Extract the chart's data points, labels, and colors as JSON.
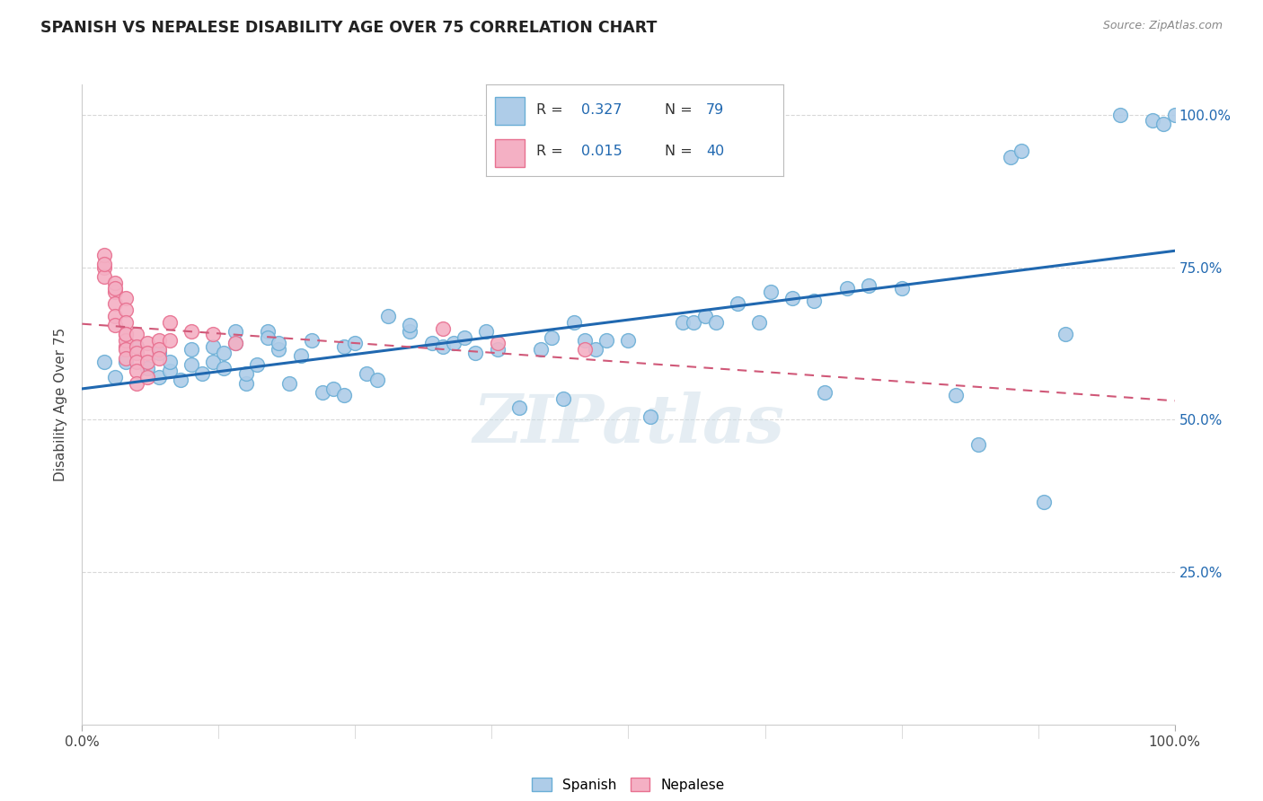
{
  "title": "SPANISH VS NEPALESE DISABILITY AGE OVER 75 CORRELATION CHART",
  "source": "Source: ZipAtlas.com",
  "ylabel": "Disability Age Over 75",
  "xlim": [
    0.0,
    1.0
  ],
  "ylim": [
    0.0,
    1.05
  ],
  "xtick_positions": [
    0.0,
    1.0
  ],
  "xtick_labels": [
    "0.0%",
    "100.0%"
  ],
  "ytick_positions": [
    0.25,
    0.5,
    0.75,
    1.0
  ],
  "ytick_labels_right": [
    "25.0%",
    "50.0%",
    "75.0%",
    "100.0%"
  ],
  "watermark": "ZIPatlas",
  "legend_r1": "0.327",
  "legend_n1": "79",
  "legend_r2": "0.015",
  "legend_n2": "40",
  "spanish_color": "#aecce8",
  "spanish_edge": "#6aaed6",
  "nepalese_color": "#f4b0c4",
  "nepalese_edge": "#e87090",
  "trend_spanish_color": "#2068b0",
  "trend_nepalese_color": "#d05878",
  "grid_color": "#d8d8d8",
  "background_color": "#ffffff",
  "title_color": "#222222",
  "axis_label_color": "#444444",
  "right_tick_color": "#2068b0",
  "spanish_points": [
    [
      0.02,
      0.595
    ],
    [
      0.03,
      0.57
    ],
    [
      0.04,
      0.595
    ],
    [
      0.05,
      0.62
    ],
    [
      0.06,
      0.585
    ],
    [
      0.07,
      0.61
    ],
    [
      0.07,
      0.57
    ],
    [
      0.08,
      0.58
    ],
    [
      0.08,
      0.595
    ],
    [
      0.09,
      0.565
    ],
    [
      0.1,
      0.59
    ],
    [
      0.1,
      0.615
    ],
    [
      0.11,
      0.575
    ],
    [
      0.12,
      0.62
    ],
    [
      0.12,
      0.595
    ],
    [
      0.13,
      0.585
    ],
    [
      0.13,
      0.61
    ],
    [
      0.14,
      0.625
    ],
    [
      0.14,
      0.645
    ],
    [
      0.15,
      0.56
    ],
    [
      0.15,
      0.575
    ],
    [
      0.16,
      0.59
    ],
    [
      0.17,
      0.645
    ],
    [
      0.17,
      0.635
    ],
    [
      0.18,
      0.615
    ],
    [
      0.18,
      0.625
    ],
    [
      0.19,
      0.56
    ],
    [
      0.2,
      0.605
    ],
    [
      0.21,
      0.63
    ],
    [
      0.22,
      0.545
    ],
    [
      0.23,
      0.55
    ],
    [
      0.24,
      0.62
    ],
    [
      0.24,
      0.54
    ],
    [
      0.25,
      0.625
    ],
    [
      0.26,
      0.575
    ],
    [
      0.27,
      0.565
    ],
    [
      0.28,
      0.67
    ],
    [
      0.3,
      0.645
    ],
    [
      0.3,
      0.655
    ],
    [
      0.32,
      0.625
    ],
    [
      0.33,
      0.62
    ],
    [
      0.34,
      0.625
    ],
    [
      0.35,
      0.635
    ],
    [
      0.36,
      0.61
    ],
    [
      0.37,
      0.645
    ],
    [
      0.38,
      0.615
    ],
    [
      0.4,
      0.52
    ],
    [
      0.42,
      0.615
    ],
    [
      0.43,
      0.635
    ],
    [
      0.44,
      0.535
    ],
    [
      0.45,
      0.66
    ],
    [
      0.46,
      0.63
    ],
    [
      0.47,
      0.615
    ],
    [
      0.48,
      0.63
    ],
    [
      0.5,
      0.63
    ],
    [
      0.52,
      0.505
    ],
    [
      0.55,
      0.66
    ],
    [
      0.56,
      0.66
    ],
    [
      0.57,
      0.67
    ],
    [
      0.58,
      0.66
    ],
    [
      0.6,
      0.69
    ],
    [
      0.62,
      0.66
    ],
    [
      0.63,
      0.71
    ],
    [
      0.65,
      0.7
    ],
    [
      0.67,
      0.695
    ],
    [
      0.68,
      0.545
    ],
    [
      0.7,
      0.715
    ],
    [
      0.72,
      0.72
    ],
    [
      0.75,
      0.715
    ],
    [
      0.8,
      0.54
    ],
    [
      0.82,
      0.46
    ],
    [
      0.85,
      0.93
    ],
    [
      0.86,
      0.94
    ],
    [
      0.88,
      0.365
    ],
    [
      0.9,
      0.64
    ],
    [
      0.95,
      1.0
    ],
    [
      0.98,
      0.99
    ],
    [
      0.99,
      0.985
    ],
    [
      1.0,
      1.0
    ]
  ],
  "nepalese_points": [
    [
      0.02,
      0.75
    ],
    [
      0.02,
      0.77
    ],
    [
      0.02,
      0.735
    ],
    [
      0.02,
      0.755
    ],
    [
      0.03,
      0.71
    ],
    [
      0.03,
      0.725
    ],
    [
      0.03,
      0.69
    ],
    [
      0.03,
      0.715
    ],
    [
      0.03,
      0.67
    ],
    [
      0.03,
      0.655
    ],
    [
      0.04,
      0.7
    ],
    [
      0.04,
      0.68
    ],
    [
      0.04,
      0.66
    ],
    [
      0.04,
      0.64
    ],
    [
      0.04,
      0.62
    ],
    [
      0.04,
      0.63
    ],
    [
      0.04,
      0.64
    ],
    [
      0.04,
      0.615
    ],
    [
      0.04,
      0.6
    ],
    [
      0.05,
      0.64
    ],
    [
      0.05,
      0.62
    ],
    [
      0.05,
      0.61
    ],
    [
      0.05,
      0.595
    ],
    [
      0.05,
      0.58
    ],
    [
      0.05,
      0.56
    ],
    [
      0.06,
      0.625
    ],
    [
      0.06,
      0.61
    ],
    [
      0.06,
      0.595
    ],
    [
      0.06,
      0.57
    ],
    [
      0.07,
      0.63
    ],
    [
      0.07,
      0.615
    ],
    [
      0.07,
      0.6
    ],
    [
      0.08,
      0.63
    ],
    [
      0.08,
      0.66
    ],
    [
      0.1,
      0.645
    ],
    [
      0.12,
      0.64
    ],
    [
      0.14,
      0.625
    ],
    [
      0.33,
      0.65
    ],
    [
      0.38,
      0.625
    ],
    [
      0.46,
      0.615
    ]
  ]
}
